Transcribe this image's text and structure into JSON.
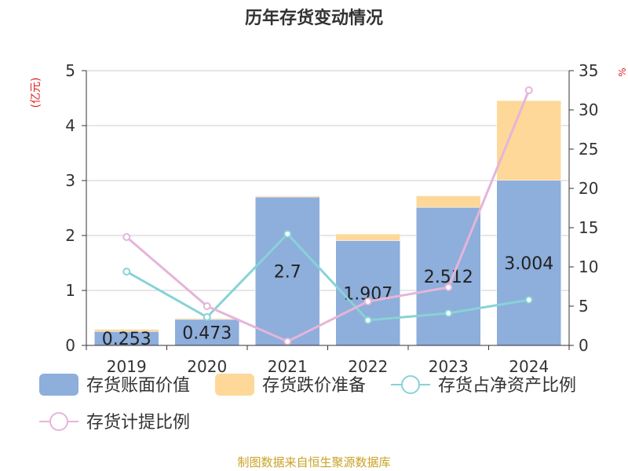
{
  "chart_data": {
    "type": "bar",
    "title": "历年存货变动情况",
    "ylabel_left": "(亿元)",
    "ylabel_right": "%",
    "categories": [
      "2019",
      "2020",
      "2021",
      "2022",
      "2023",
      "2024"
    ],
    "ylim_left": [
      0,
      5
    ],
    "yticks_left": [
      "0",
      "1",
      "2",
      "3",
      "4",
      "5"
    ],
    "ylim_right": [
      0,
      35
    ],
    "yticks_right": [
      "0",
      "5",
      "10",
      "15",
      "20",
      "25",
      "30",
      "35"
    ],
    "grid": true,
    "legend_position": "bottom",
    "stacked_series": [
      {
        "name": "存货账面价值",
        "color": "#8eaedb",
        "values": [
          0.253,
          0.473,
          2.7,
          1.907,
          2.512,
          3.004
        ],
        "labels": [
          "0.253",
          "0.473",
          "2.7",
          "1.907",
          "2.512",
          "3.004"
        ]
      },
      {
        "name": "存货跌价准备",
        "color": "#fdd899",
        "values": [
          0.04,
          0.02,
          0.02,
          0.12,
          0.21,
          1.45
        ]
      }
    ],
    "line_series": [
      {
        "name": "存货占净资产比例",
        "color": "#87d3d6",
        "axis": "right",
        "values": [
          9.4,
          3.6,
          14.2,
          3.2,
          4.1,
          5.8
        ]
      },
      {
        "name": "存货计提比例",
        "color": "#e5b5d9",
        "axis": "right",
        "values": [
          13.8,
          5.0,
          0.5,
          5.6,
          7.4,
          32.5
        ]
      }
    ]
  },
  "footer": "制图数据来自恒生聚源数据库"
}
